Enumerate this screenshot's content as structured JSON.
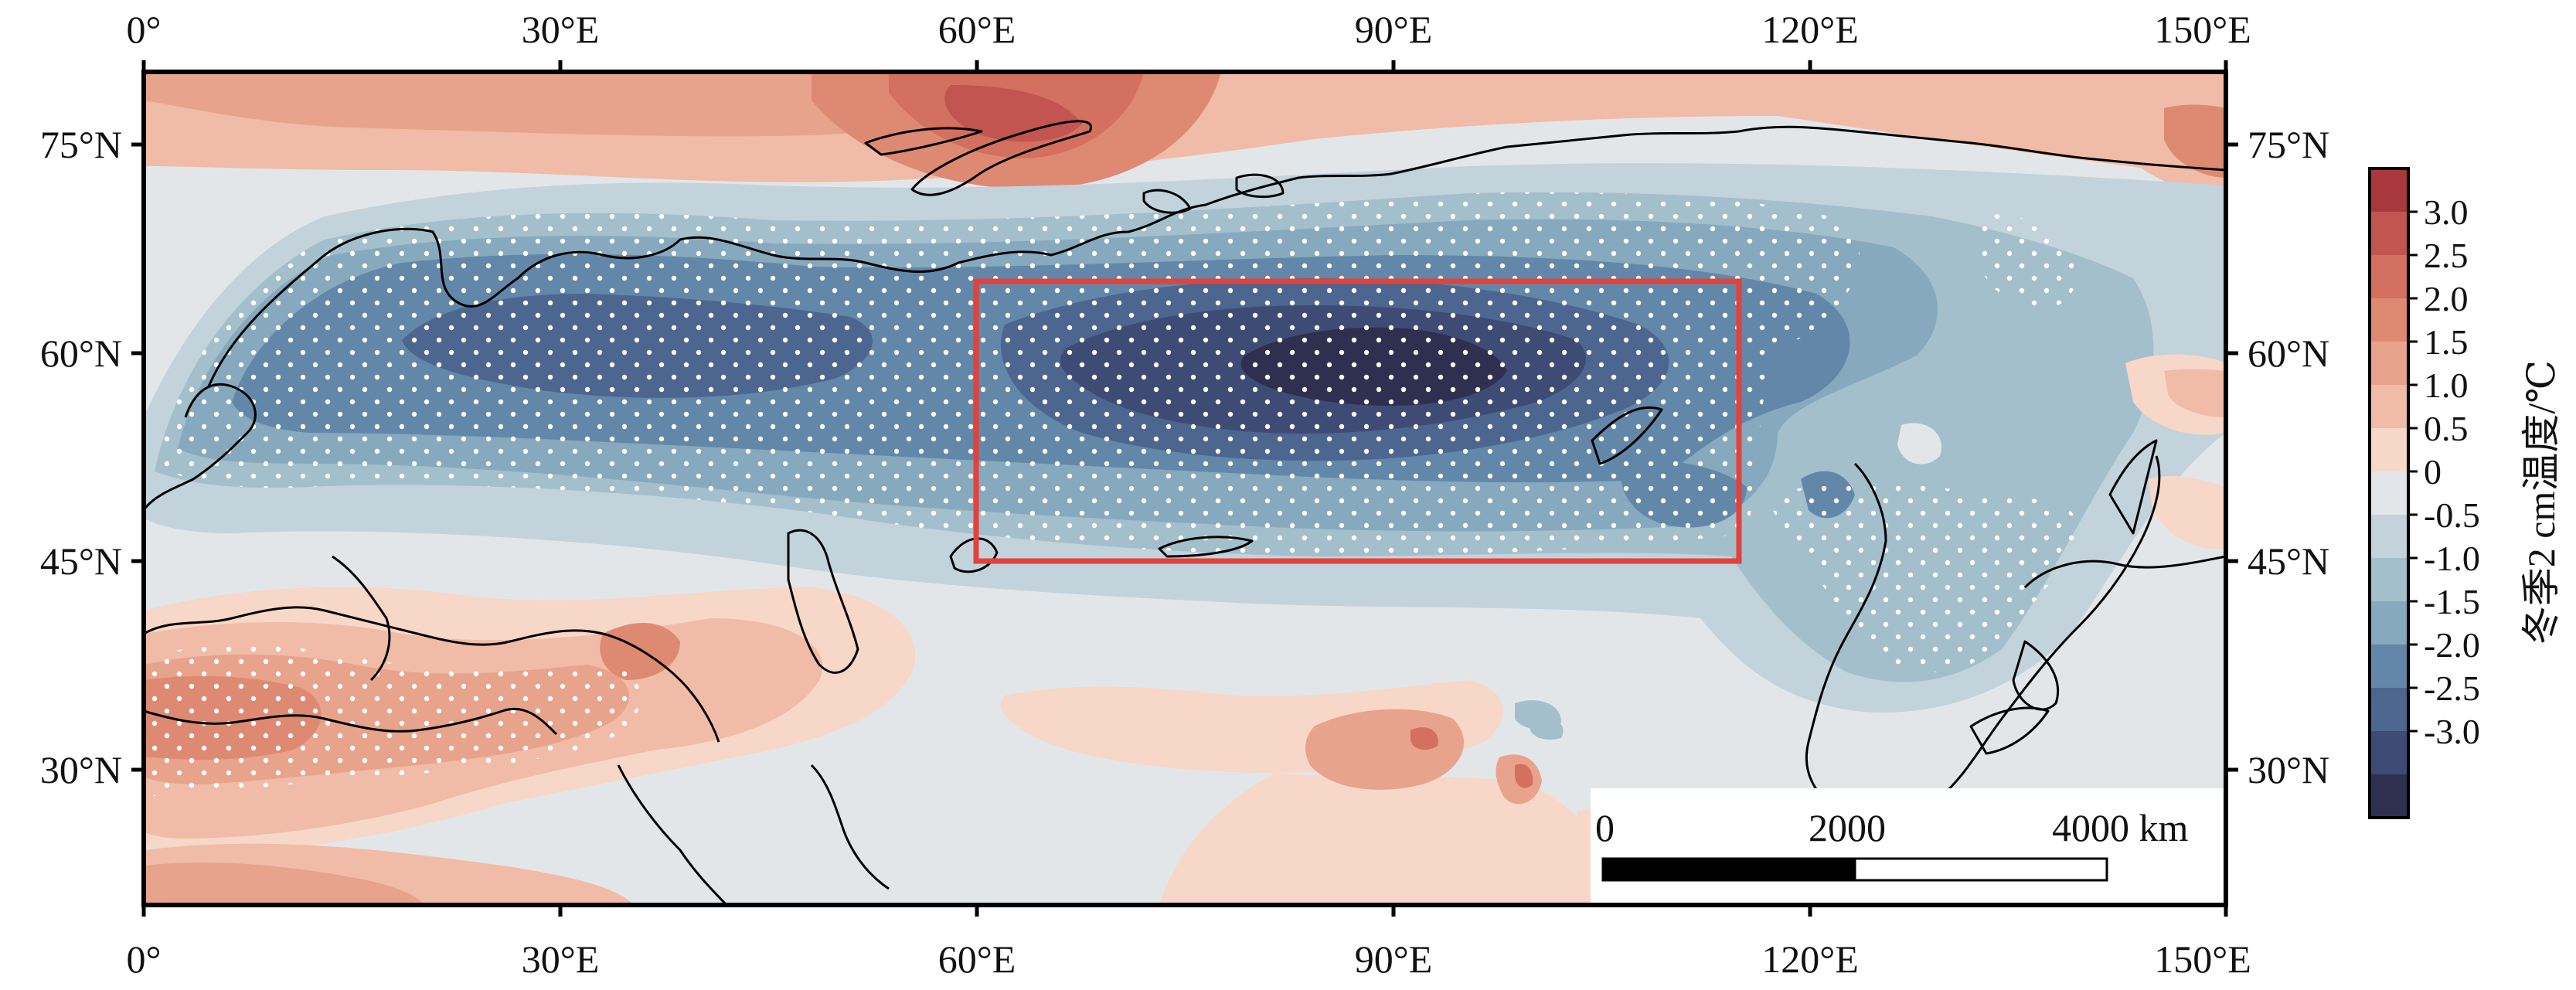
{
  "map": {
    "top_ticks": [
      "0°",
      "30°E",
      "60°E",
      "90°E",
      "120°E",
      "150°E"
    ],
    "bottom_ticks": [
      "0°",
      "30°E",
      "60°E",
      "90°E",
      "120°E",
      "150°E"
    ],
    "left_ticks": [
      "75°N",
      "60°N",
      "45°N",
      "30°N"
    ],
    "right_ticks": [
      "75°N",
      "60°N",
      "45°N",
      "30°N"
    ],
    "extent": {
      "lon": [
        0,
        150
      ],
      "lat": [
        20,
        80
      ]
    },
    "highlight_box": {
      "lon": [
        60,
        115
      ],
      "lat": [
        45,
        65
      ],
      "color": "#e2423a"
    },
    "scale_bar": {
      "labels": [
        "0",
        "2000",
        "4000 km"
      ]
    }
  },
  "colorbar": {
    "title": "冬季2 cm温度/℃",
    "labels": [
      "3.0",
      "2.5",
      "2.0",
      "1.5",
      "1.0",
      "0.5",
      "0",
      "-0.5",
      "-1.0",
      "-1.5",
      "-2.0",
      "-2.5",
      "-3.0"
    ],
    "colors": [
      "#a8383b",
      "#c2554f",
      "#d4705f",
      "#de8a73",
      "#e8a38c",
      "#f0bca7",
      "#f7d7c8",
      "#e3e6e9",
      "#c2d3dc",
      "#a3bfcc",
      "#86a9bd",
      "#6387a8",
      "#4c6690",
      "#3e4b75",
      "#2f2f4f"
    ]
  }
}
